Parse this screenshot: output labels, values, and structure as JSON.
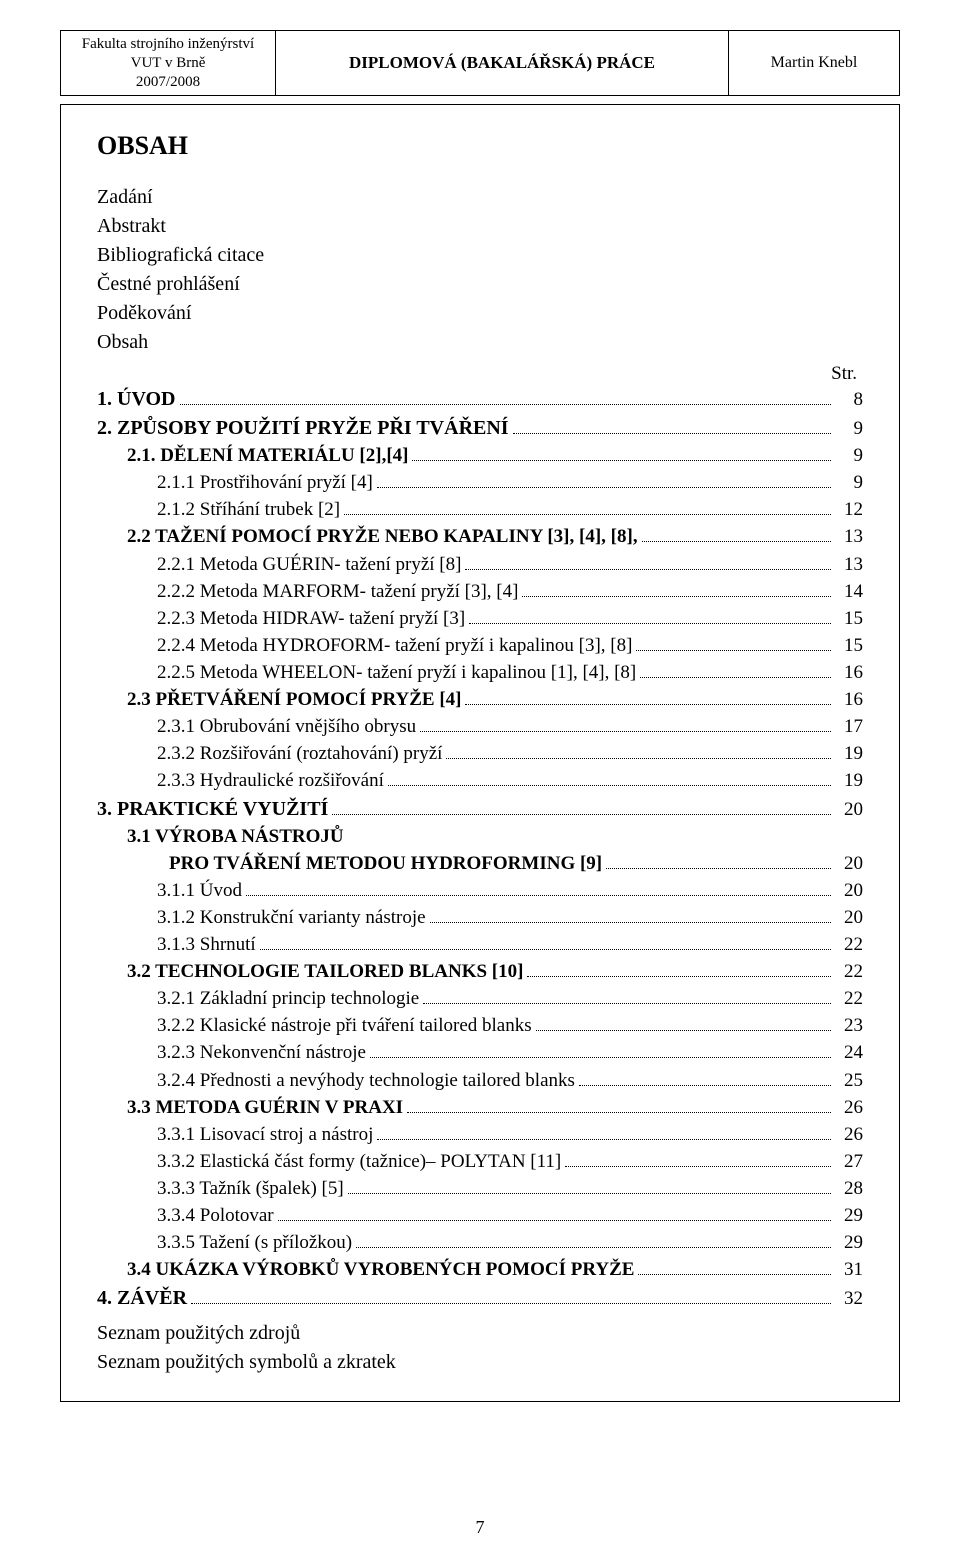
{
  "header": {
    "left_line1": "Fakulta strojního inženýrství",
    "left_line2": "VUT v Brně",
    "left_line3": "2007/2008",
    "center": "DIPLOMOVÁ (BAKALÁŘSKÁ) PRÁCE",
    "right": "Martin Knebl"
  },
  "title": "OBSAH",
  "intro_lines": [
    "Zadání",
    "Abstrakt",
    "Bibliografická citace",
    "Čestné prohlášení",
    "Poděkování",
    "Obsah"
  ],
  "str_label": "Str.",
  "toc": [
    {
      "level": 0,
      "label": "1. ÚVOD",
      "page": "8",
      "bold": true
    },
    {
      "level": 0,
      "label": "2. ZPŮSOBY POUŽITÍ PRYŽE PŘI TVÁŘENÍ",
      "page": "9",
      "bold": true
    },
    {
      "level": 1,
      "label": "2.1. DĚLENÍ MATERIÁLU [2],[4]",
      "page": "9",
      "bold": true
    },
    {
      "level": 2,
      "label": "2.1.1 Prostřihování pryží [4]",
      "page": "9"
    },
    {
      "level": 2,
      "label": "2.1.2 Stříhání trubek [2]",
      "page": "12"
    },
    {
      "level": 1,
      "label": "2.2 TAŽENÍ POMOCÍ PRYŽE NEBO KAPALINY [3], [4], [8],",
      "page": "13",
      "bold": true
    },
    {
      "level": 2,
      "label": "2.2.1 Metoda GUÉRIN- tažení pryží [8]",
      "page": "13"
    },
    {
      "level": 2,
      "label": "2.2.2 Metoda MARFORM- tažení pryží [3], [4]",
      "page": "14"
    },
    {
      "level": 2,
      "label": "2.2.3 Metoda HIDRAW- tažení pryží [3]",
      "page": "15"
    },
    {
      "level": 2,
      "label": "2.2.4 Metoda HYDROFORM- tažení pryží i kapalinou [3], [8]",
      "page": "15"
    },
    {
      "level": 2,
      "label": "2.2.5 Metoda WHEELON- tažení pryží i kapalinou [1], [4], [8]",
      "page": "16"
    },
    {
      "level": 1,
      "label": "2.3 PŘETVÁŘENÍ POMOCÍ PRYŽE [4]",
      "page": "16",
      "bold": true
    },
    {
      "level": 2,
      "label": "2.3.1 Obrubování vnějšího obrysu",
      "page": "17"
    },
    {
      "level": 2,
      "label": "2.3.2 Rozšiřování (roztahování) pryží",
      "page": "19"
    },
    {
      "level": 2,
      "label": "2.3.3 Hydraulické rozšiřování",
      "page": "19"
    },
    {
      "level": 0,
      "label": "3. PRAKTICKÉ VYUŽITÍ",
      "page": "20",
      "bold": true
    },
    {
      "level": 1,
      "label": "3.1 VÝROBA NÁSTROJŮ",
      "nopage": true,
      "bold": true
    },
    {
      "level": 1,
      "label": "PRO TVÁŘENÍ  METODOU HYDROFORMING  [9]",
      "page": "20",
      "bold": true,
      "continuation": true,
      "extra_indent": 42
    },
    {
      "level": 2,
      "label": "3.1.1 Úvod",
      "page": "20"
    },
    {
      "level": 2,
      "label": "3.1.2 Konstrukční varianty nástroje",
      "page": "20"
    },
    {
      "level": 2,
      "label": "3.1.3 Shrnutí",
      "page": "22"
    },
    {
      "level": 1,
      "label": "3.2 TECHNOLOGIE TAILORED BLANKS [10]",
      "page": "22",
      "bold": true
    },
    {
      "level": 2,
      "label": "3.2.1 Základní princip technologie",
      "page": "22"
    },
    {
      "level": 2,
      "label": "3.2.2 Klasické nástroje při tváření tailored blanks",
      "page": "23"
    },
    {
      "level": 2,
      "label": "3.2.3 Nekonvenční nástroje",
      "page": "24"
    },
    {
      "level": 2,
      "label": "3.2.4 Přednosti a nevýhody technologie tailored blanks",
      "page": "25"
    },
    {
      "level": 1,
      "label": "3.3 METODA GUÉRIN V PRAXI",
      "page": "26",
      "bold": true
    },
    {
      "level": 2,
      "label": "3.3.1 Lisovací stroj a nástroj",
      "page": "26"
    },
    {
      "level": 2,
      "label": "3.3.2 Elastická část formy (tažnice)– POLYTAN  [11]",
      "page": "27"
    },
    {
      "level": 2,
      "label": "3.3.3 Tažník (špalek) [5]",
      "page": "28"
    },
    {
      "level": 2,
      "label": "3.3.4 Polotovar",
      "page": "29"
    },
    {
      "level": 2,
      "label": "3.3.5 Tažení (s příložkou)",
      "page": "29"
    },
    {
      "level": 1,
      "label": "3.4 UKÁZKA VÝROBKŮ VYROBENÝCH POMOCÍ PRYŽE",
      "page": "31",
      "bold": true
    },
    {
      "level": 0,
      "label": "4. ZÁVĚR",
      "page": "32",
      "bold": true
    }
  ],
  "trailing_lines": [
    "Seznam použitých zdrojů",
    "Seznam použitých symbolů a zkratek"
  ],
  "page_number": "7",
  "colors": {
    "text": "#000000",
    "bg": "#ffffff",
    "border": "#000000"
  }
}
